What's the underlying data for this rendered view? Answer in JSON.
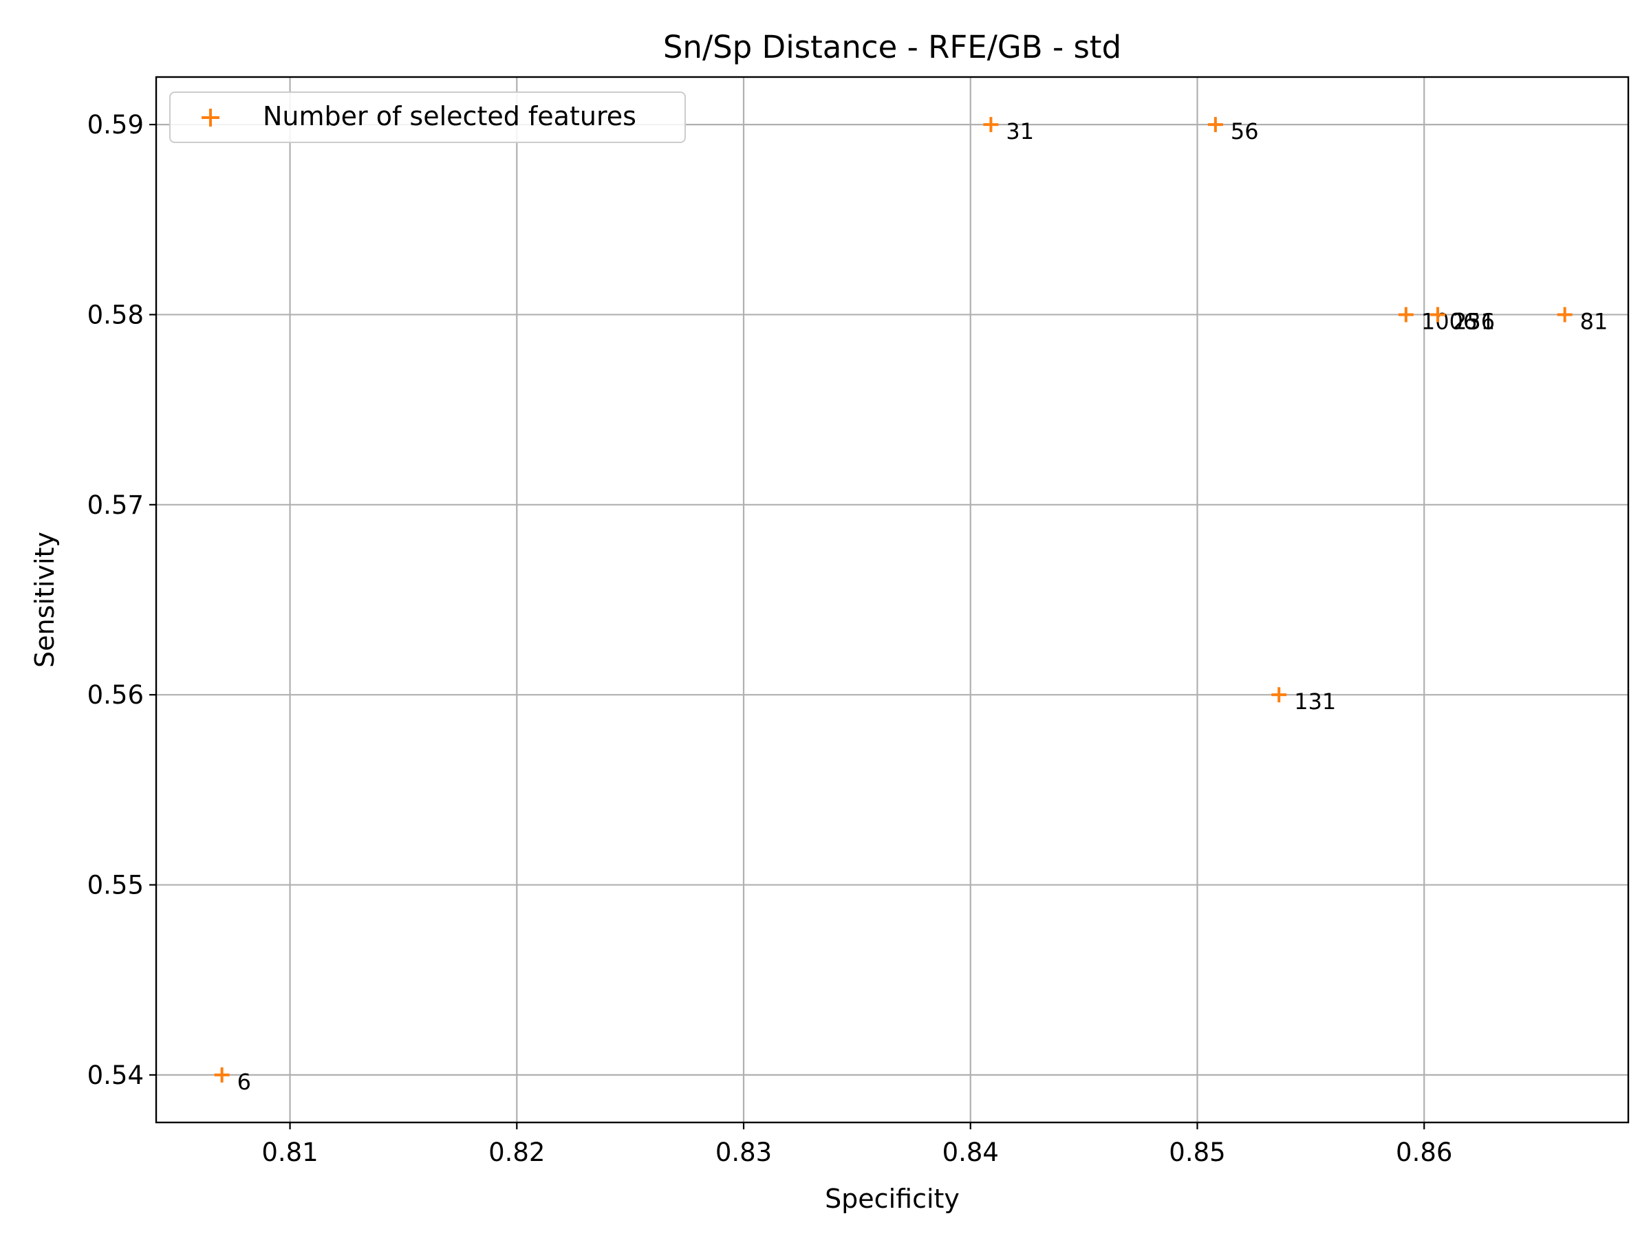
{
  "chart_data": {
    "type": "scatter",
    "title": "Sn/Sp Distance - RFE/GB - std",
    "xlabel": "Specificity",
    "ylabel": "Sensitivity",
    "xlim": [
      0.8041,
      0.869
    ],
    "ylim": [
      0.5375,
      0.5925
    ],
    "xticks": [
      0.81,
      0.82,
      0.83,
      0.84,
      0.85,
      0.86
    ],
    "xtick_labels": [
      "0.81",
      "0.82",
      "0.83",
      "0.84",
      "0.85",
      "0.86"
    ],
    "yticks": [
      0.54,
      0.55,
      0.56,
      0.57,
      0.58,
      0.59
    ],
    "ytick_labels": [
      "0.54",
      "0.55",
      "0.56",
      "0.57",
      "0.58",
      "0.59"
    ],
    "grid": true,
    "legend_position": "upper-left",
    "marker_color": "#ff7f0e",
    "series": [
      {
        "name": "Number of selected features",
        "marker": "+",
        "points": [
          {
            "x": 0.807,
            "y": 0.54,
            "label": "6"
          },
          {
            "x": 0.8409,
            "y": 0.59,
            "label": "31"
          },
          {
            "x": 0.8508,
            "y": 0.59,
            "label": "56"
          },
          {
            "x": 0.8536,
            "y": 0.56,
            "label": "131"
          },
          {
            "x": 0.8592,
            "y": 0.58,
            "label": "1006"
          },
          {
            "x": 0.8606,
            "y": 0.58,
            "label": "256"
          },
          {
            "x": 0.8606,
            "y": 0.58,
            "label": "231"
          },
          {
            "x": 0.8662,
            "y": 0.58,
            "label": "81"
          }
        ]
      }
    ]
  }
}
